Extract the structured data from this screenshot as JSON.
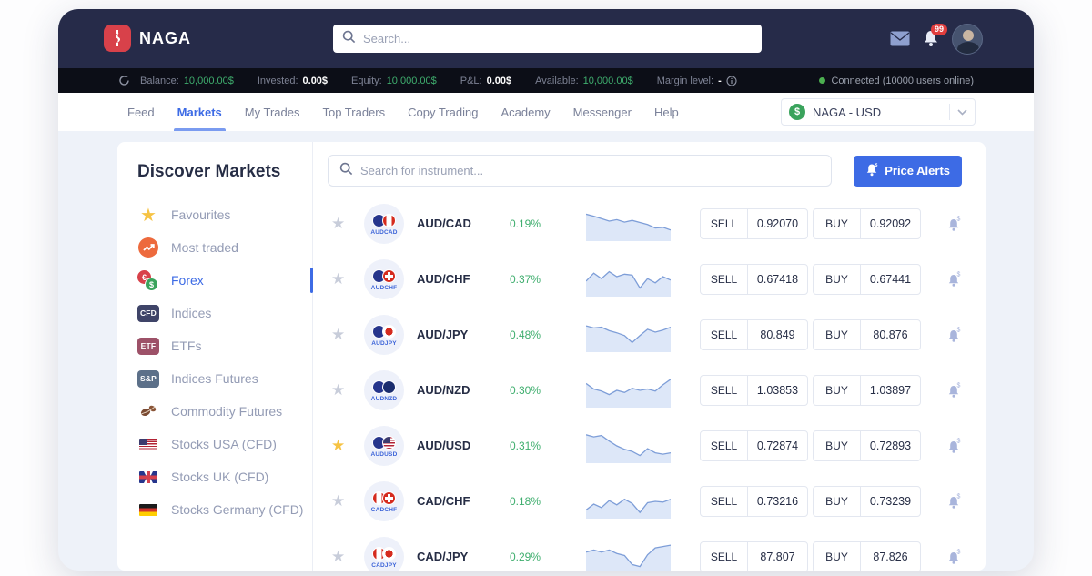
{
  "colors": {
    "accent_blue": "#3d6be5",
    "green": "#3fae6e",
    "topbar_navy": "#262b49",
    "balancebar_black": "#0c0e17",
    "logo_red": "#d8414a",
    "favourite_yellow": "#f6c344"
  },
  "topbar": {
    "brand": "NAGA",
    "search_placeholder": "Search...",
    "notification_count": "99"
  },
  "balance_bar": {
    "items": [
      {
        "label": "Balance:",
        "value": "10,000.00$",
        "style": "green"
      },
      {
        "label": "Invested:",
        "value": "0.00$",
        "style": "white"
      },
      {
        "label": "Equity:",
        "value": "10,000.00$",
        "style": "green"
      },
      {
        "label": "P&L:",
        "value": "0.00$",
        "style": "white"
      },
      {
        "label": "Available:",
        "value": "10,000.00$",
        "style": "green"
      }
    ],
    "margin_label": "Margin level:",
    "margin_value": "-",
    "connection_status": "Connected (10000 users online)"
  },
  "nav": {
    "tabs": [
      {
        "label": "Feed"
      },
      {
        "label": "Markets",
        "active": true
      },
      {
        "label": "My Trades"
      },
      {
        "label": "Top Traders"
      },
      {
        "label": "Copy Trading"
      },
      {
        "label": "Academy"
      },
      {
        "label": "Messenger"
      },
      {
        "label": "Help"
      }
    ],
    "account_selector": "NAGA - USD"
  },
  "sidebar": {
    "title": "Discover Markets",
    "items": [
      {
        "label": "Favourites"
      },
      {
        "label": "Most traded"
      },
      {
        "label": "Forex",
        "active": true
      },
      {
        "label": "Indices",
        "badge": "CFD"
      },
      {
        "label": "ETFs",
        "badge": "ETF"
      },
      {
        "label": "Indices Futures",
        "badge": "S&P"
      },
      {
        "label": "Commodity Futures"
      },
      {
        "label": "Stocks USA (CFD)"
      },
      {
        "label": "Stocks UK (CFD)"
      },
      {
        "label": "Stocks Germany (CFD)"
      }
    ]
  },
  "main": {
    "search_placeholder": "Search for instrument...",
    "price_alerts_label": "Price Alerts",
    "sell_label": "SELL",
    "buy_label": "BUY",
    "instruments": [
      {
        "name": "AUD/CAD",
        "code": "AUDCAD",
        "base": "AUD",
        "quote": "CAD",
        "change": "0.19%",
        "sell": "0.92070",
        "buy": "0.92092",
        "favourite": false,
        "spark": [
          0.22,
          0.28,
          0.35,
          0.42,
          0.38,
          0.45,
          0.4,
          0.46,
          0.52,
          0.62,
          0.6,
          0.68
        ]
      },
      {
        "name": "AUD/CHF",
        "code": "AUDCHF",
        "base": "AUD",
        "quote": "CHF",
        "change": "0.37%",
        "sell": "0.67418",
        "buy": "0.67441",
        "favourite": false,
        "spark": [
          0.55,
          0.32,
          0.48,
          0.28,
          0.42,
          0.35,
          0.38,
          0.75,
          0.48,
          0.6,
          0.42,
          0.52
        ]
      },
      {
        "name": "AUD/JPY",
        "code": "AUDJPY",
        "base": "AUD",
        "quote": "JPY",
        "change": "0.48%",
        "sell": "80.849",
        "buy": "80.876",
        "favourite": false,
        "spark": [
          0.24,
          0.3,
          0.28,
          0.38,
          0.44,
          0.52,
          0.72,
          0.52,
          0.34,
          0.42,
          0.36,
          0.28
        ]
      },
      {
        "name": "AUD/NZD",
        "code": "AUDNZD",
        "base": "AUD",
        "quote": "NZD",
        "change": "0.30%",
        "sell": "1.03853",
        "buy": "1.03897",
        "favourite": false,
        "spark": [
          0.3,
          0.46,
          0.52,
          0.62,
          0.5,
          0.56,
          0.44,
          0.5,
          0.46,
          0.52,
          0.34,
          0.18
        ]
      },
      {
        "name": "AUD/USD",
        "code": "AUDUSD",
        "base": "AUD",
        "quote": "USD",
        "change": "0.31%",
        "sell": "0.72874",
        "buy": "0.72893",
        "favourite": true,
        "spark": [
          0.18,
          0.24,
          0.2,
          0.36,
          0.5,
          0.6,
          0.66,
          0.78,
          0.58,
          0.7,
          0.74,
          0.7
        ]
      },
      {
        "name": "CAD/CHF",
        "code": "CADCHF",
        "base": "CAD",
        "quote": "CHF",
        "change": "0.18%",
        "sell": "0.73216",
        "buy": "0.73239",
        "favourite": false,
        "spark": [
          0.75,
          0.58,
          0.68,
          0.48,
          0.6,
          0.44,
          0.56,
          0.82,
          0.54,
          0.5,
          0.52,
          0.44
        ]
      },
      {
        "name": "CAD/JPY",
        "code": "CADJPY",
        "base": "CAD",
        "quote": "JPY",
        "change": "0.29%",
        "sell": "87.807",
        "buy": "87.826",
        "favourite": false,
        "spark": [
          0.36,
          0.3,
          0.36,
          0.3,
          0.4,
          0.46,
          0.72,
          0.78,
          0.44,
          0.24,
          0.2,
          0.16
        ]
      }
    ]
  }
}
